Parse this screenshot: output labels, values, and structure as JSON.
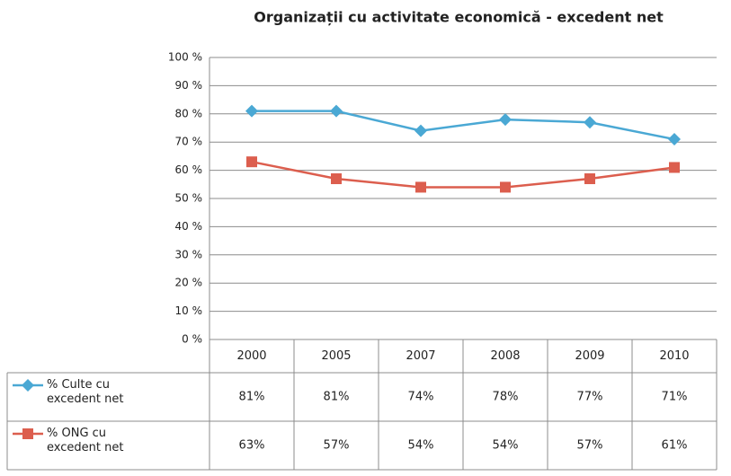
{
  "chart_data": {
    "type": "line",
    "title": "Organizații cu activitate economică - excedent net",
    "categories": [
      "2000",
      "2005",
      "2007",
      "2008",
      "2009",
      "2010"
    ],
    "series": [
      {
        "name": "% Culte cu excedent net",
        "color": "#4aa8d4",
        "marker": "diamond",
        "values": [
          81,
          81,
          74,
          78,
          77,
          71
        ],
        "value_labels": [
          "81%",
          "81%",
          "74%",
          "78%",
          "77%",
          "71%"
        ]
      },
      {
        "name": "% ONG cu excedent net",
        "color": "#dc5e4e",
        "marker": "square",
        "values": [
          63,
          57,
          54,
          54,
          57,
          61
        ],
        "value_labels": [
          "63%",
          "57%",
          "54%",
          "54%",
          "57%",
          "61%"
        ]
      }
    ],
    "ylim": [
      0,
      100
    ],
    "yticks": [
      {
        "value": 0,
        "label": "0 %"
      },
      {
        "value": 10,
        "label": "10 %"
      },
      {
        "value": 20,
        "label": "20 %"
      },
      {
        "value": 30,
        "label": "30 %"
      },
      {
        "value": 40,
        "label": "40 %"
      },
      {
        "value": 50,
        "label": "50 %"
      },
      {
        "value": 60,
        "label": "60 %"
      },
      {
        "value": 70,
        "label": "70 %"
      },
      {
        "value": 80,
        "label": "80 %"
      },
      {
        "value": 90,
        "label": "90 %"
      },
      {
        "value": 100,
        "label": "100 %"
      }
    ],
    "grid": true
  }
}
